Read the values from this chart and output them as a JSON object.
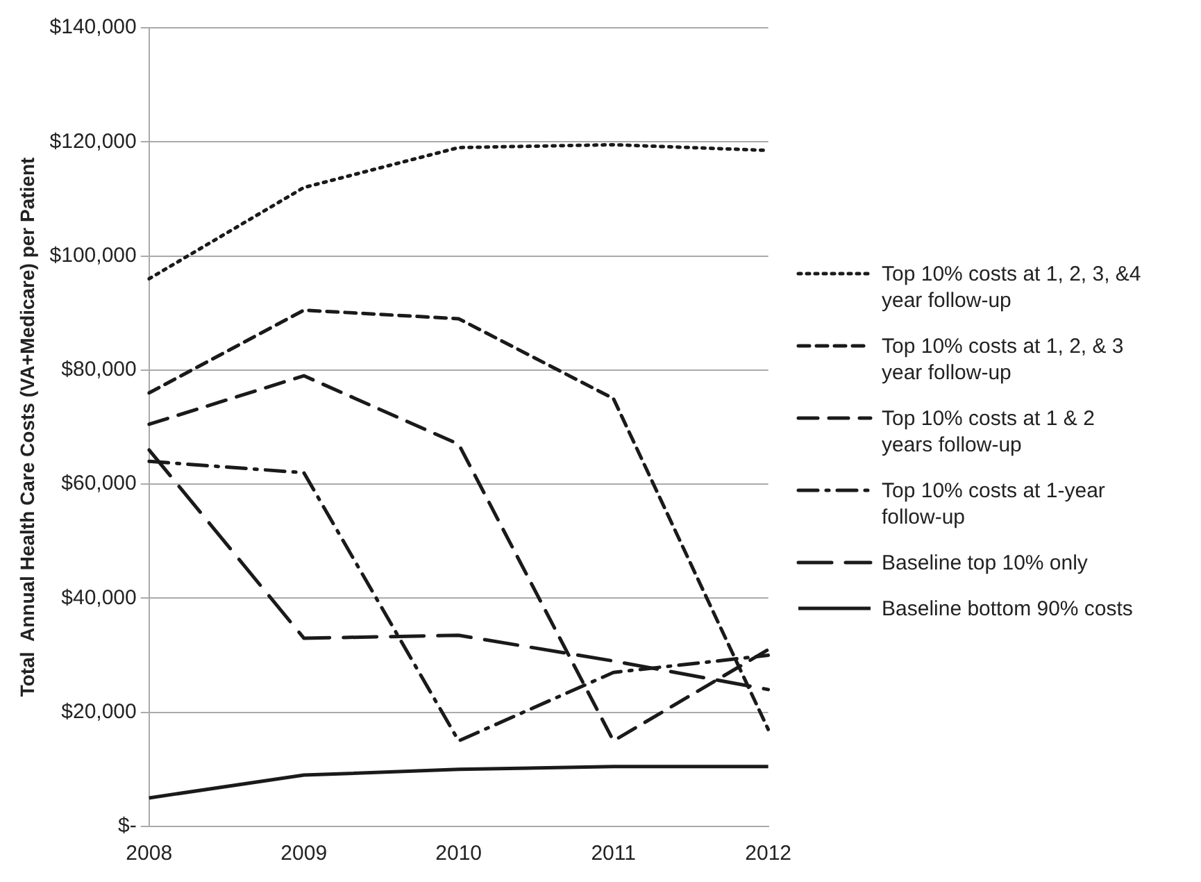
{
  "chart_data": {
    "type": "line",
    "ylabel": "Total  Annual Health Care Costs (VA+Medicare) per Patient",
    "categories": [
      "2008",
      "2009",
      "2010",
      "2011",
      "2012"
    ],
    "series": [
      {
        "name": "Top 10% costs at 1, 2, 3, &4 year follow-up",
        "color": "#1a1a1a",
        "line_style": "dotted",
        "values": [
          96000,
          112000,
          119000,
          119500,
          118500
        ]
      },
      {
        "name": "Top 10% costs at 1, 2, & 3 year follow-up",
        "color": "#1a1a1a",
        "line_style": "dashed",
        "values": [
          76000,
          90500,
          89000,
          75000,
          17000
        ]
      },
      {
        "name": "Top 10% costs at 1 & 2 years follow-up",
        "color": "#1a1a1a",
        "line_style": "dashed",
        "values": [
          70500,
          79000,
          67000,
          15000,
          31000
        ]
      },
      {
        "name": "Top 10% costs at 1-year follow-up",
        "color": "#1a1a1a",
        "line_style": "dashed",
        "values": [
          64000,
          62000,
          15000,
          27000,
          30000
        ]
      },
      {
        "name": "Baseline top 10% only",
        "color": "#1a1a1a",
        "line_style": "dashed",
        "values": [
          66000,
          33000,
          33500,
          29000,
          24000
        ]
      },
      {
        "name": "Baseline bottom 90% costs",
        "color": "#1a1a1a",
        "line_style": "solid",
        "values": [
          5000,
          9000,
          10000,
          10500,
          10500
        ]
      }
    ],
    "ylim": [
      0,
      140000
    ],
    "yticks": [
      {
        "value": 0,
        "label": "$-"
      },
      {
        "value": 20000,
        "label": "$20,000"
      },
      {
        "value": 40000,
        "label": "$40,000"
      },
      {
        "value": 60000,
        "label": "$60,000"
      },
      {
        "value": 80000,
        "label": "$80,000"
      },
      {
        "value": 100000,
        "label": "$100,000"
      },
      {
        "value": 120000,
        "label": "$120,000"
      },
      {
        "value": 140000,
        "label": "$140,000"
      }
    ],
    "grid": "y",
    "legend": "right",
    "marker": "none"
  }
}
